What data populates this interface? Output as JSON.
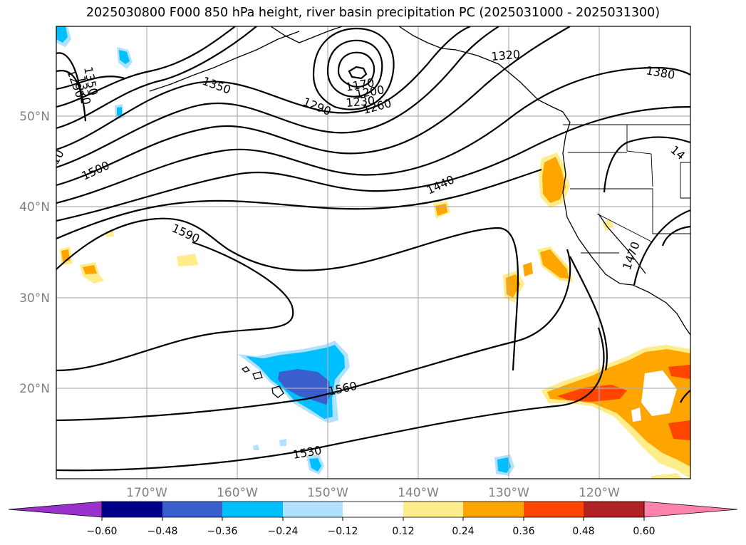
{
  "title": "2025030800 F000 850 hPa height, river basin precipitation PC (2025031000 - 2025031300)",
  "map": {
    "lat_labels": [
      "50°N",
      "40°N",
      "30°N",
      "20°N"
    ],
    "lon_labels": [
      "170°W",
      "160°W",
      "150°W",
      "140°W",
      "130°W",
      "120°W"
    ]
  },
  "contour_labels": [
    "1350",
    "1320",
    "1290",
    "1350",
    "1290",
    "1170",
    "1200",
    "1230",
    "1260",
    "1320",
    "1380",
    "10",
    "1500",
    "1440",
    "1590",
    "1470",
    "14",
    "1560",
    "1530"
  ],
  "colorbar": {
    "ticks": [
      "−0.60",
      "−0.48",
      "−0.36",
      "−0.24",
      "−0.12",
      "0.12",
      "0.24",
      "0.36",
      "0.48",
      "0.60"
    ],
    "colors": [
      "#9932cc",
      "#00008b",
      "#3a5fcd",
      "#00bfff",
      "#b0e2ff",
      "#ffffff",
      "#ffec8b",
      "#ffa500",
      "#ff4500",
      "#b22222",
      "#ff82ab"
    ]
  }
}
